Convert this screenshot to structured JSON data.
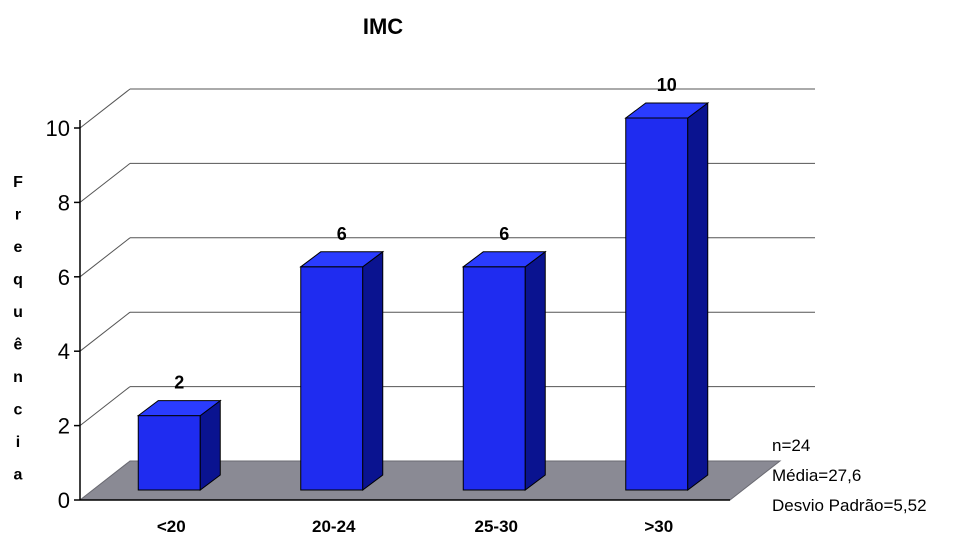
{
  "chart_data": {
    "type": "bar",
    "title": "IMC",
    "ylabel": "Frequência",
    "xlabel": "",
    "categories": [
      "<20",
      "20-24",
      "25-30",
      ">30"
    ],
    "values": [
      2,
      6,
      6,
      10
    ],
    "data_labels": [
      "2",
      "6",
      "6",
      "10"
    ],
    "ylim": [
      0,
      10
    ],
    "yticks": [
      "0",
      "2",
      "4",
      "6",
      "8",
      "10"
    ],
    "grid": true,
    "style": "3d",
    "bar_color": "#1f2cf0",
    "bar_side_color": "#0a1390",
    "floor_color": "#8a8a94"
  },
  "stats": {
    "n": "n=24",
    "media": "Média=27,6",
    "desvio": "Desvio Padrão=5,52"
  }
}
